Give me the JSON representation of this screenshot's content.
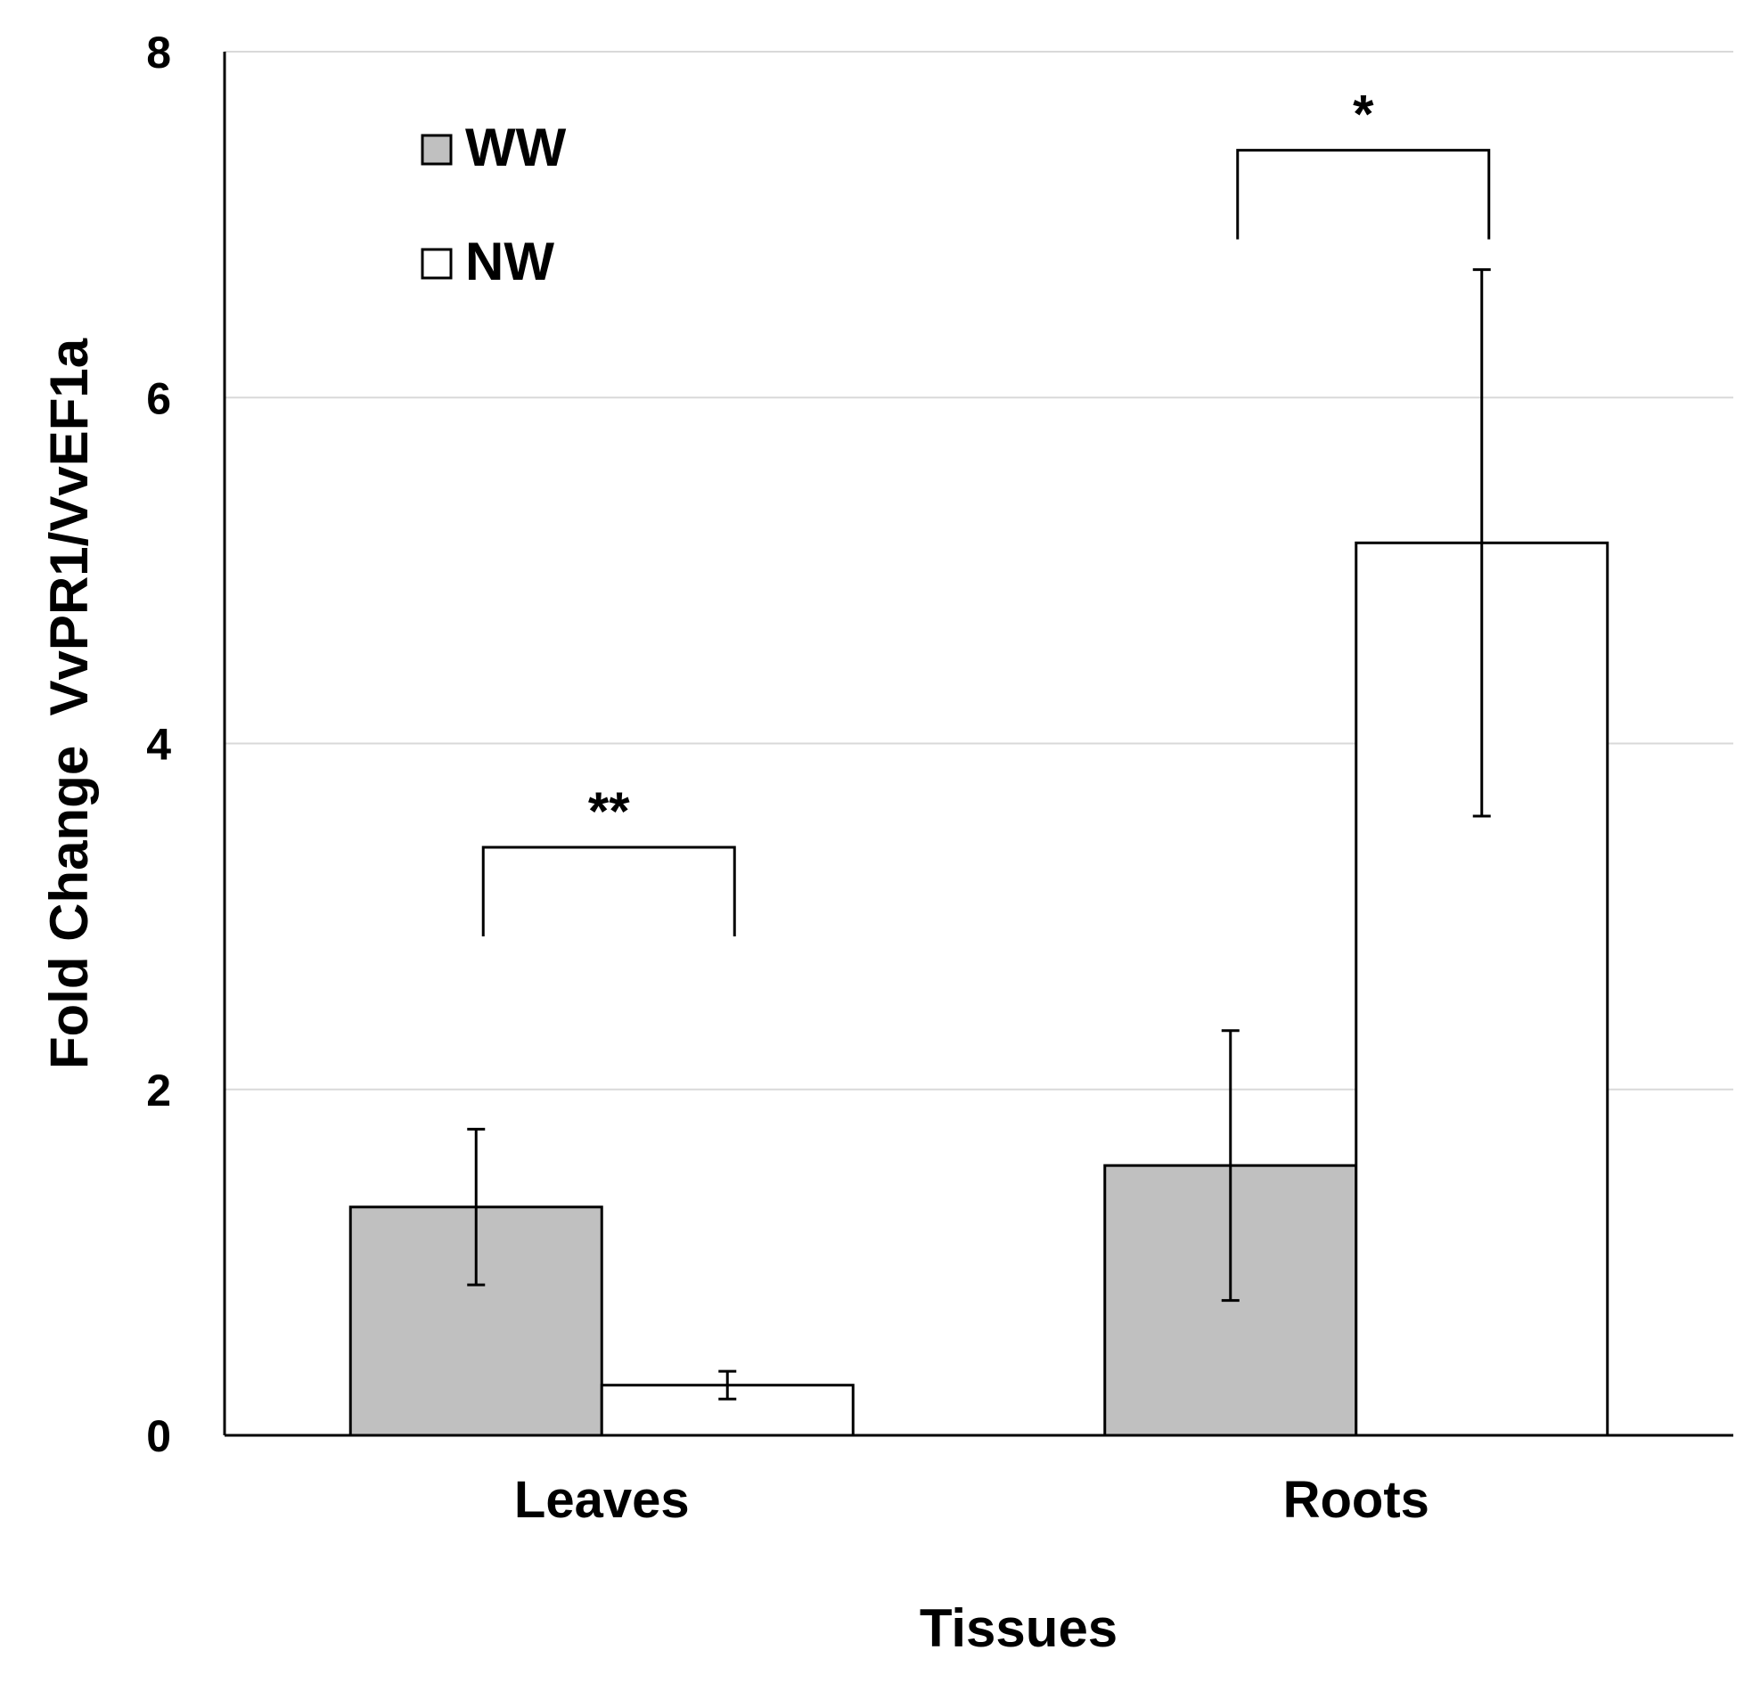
{
  "chart_data": {
    "type": "bar",
    "title": "",
    "xlabel": "Tissues",
    "ylabel": "Fold Change  VvPR1/VvEF1a",
    "categories": [
      "Leaves",
      "Roots"
    ],
    "ylim": [
      0,
      8
    ],
    "yticks": [
      0,
      2,
      4,
      6,
      8
    ],
    "grid": true,
    "legend_position": "top-left",
    "series": [
      {
        "name": "WW",
        "color": "#c0c0c0",
        "values": [
          1.32,
          1.56
        ],
        "error": [
          0.45,
          0.78
        ]
      },
      {
        "name": "NW",
        "color": "#ffffff",
        "values": [
          0.29,
          5.16
        ],
        "error": [
          0.08,
          1.58
        ]
      }
    ],
    "significance": [
      {
        "category": "Leaves",
        "label": "**",
        "bracket_y": 3.4
      },
      {
        "category": "Roots",
        "label": "*",
        "bracket_y": 7.43
      }
    ]
  }
}
